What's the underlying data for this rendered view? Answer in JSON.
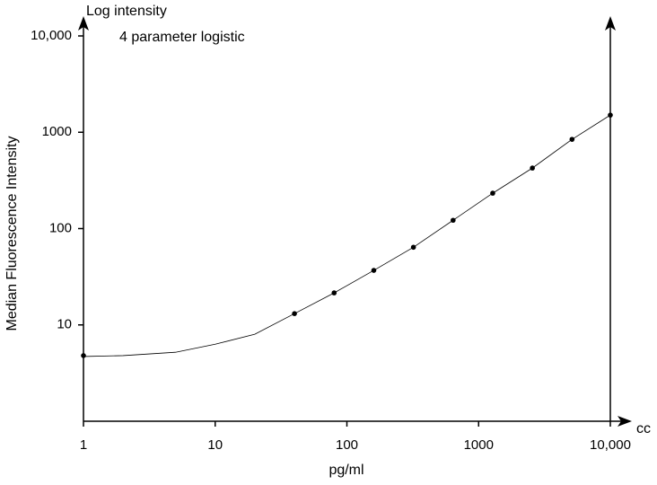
{
  "chart_data": {
    "type": "scatter",
    "title": "4 parameter logistic",
    "y_axis_title": "Log intensity",
    "ylabel": "Median Fluorescence Intensity",
    "xlabel": "pg/ml",
    "x_axis_end_label": "cc",
    "xscale": "log",
    "yscale": "log",
    "xlim": [
      1,
      10000
    ],
    "ylim": [
      1,
      10000
    ],
    "xticks": [
      1,
      10,
      100,
      1000,
      {
        "value": 10000,
        "label": "10,000"
      }
    ],
    "yticks": [
      10,
      100,
      1000,
      {
        "value": 10000,
        "label": "10,000"
      }
    ],
    "color": "#000000",
    "points": {
      "x": [
        1,
        40,
        80,
        160,
        320,
        640,
        1280,
        2560,
        5120,
        10000
      ],
      "values": [
        4.8,
        13.1,
        21.5,
        36.8,
        64,
        122,
        233,
        425,
        844,
        1507
      ]
    },
    "fit": {
      "x": [
        1,
        2,
        5,
        10,
        20,
        40,
        80,
        160,
        320,
        640,
        1280,
        2560,
        5120,
        10000
      ],
      "values": [
        4.7,
        4.8,
        5.2,
        6.3,
        8.0,
        13.1,
        21.5,
        36.8,
        64,
        122,
        233,
        425,
        844,
        1507
      ]
    }
  }
}
